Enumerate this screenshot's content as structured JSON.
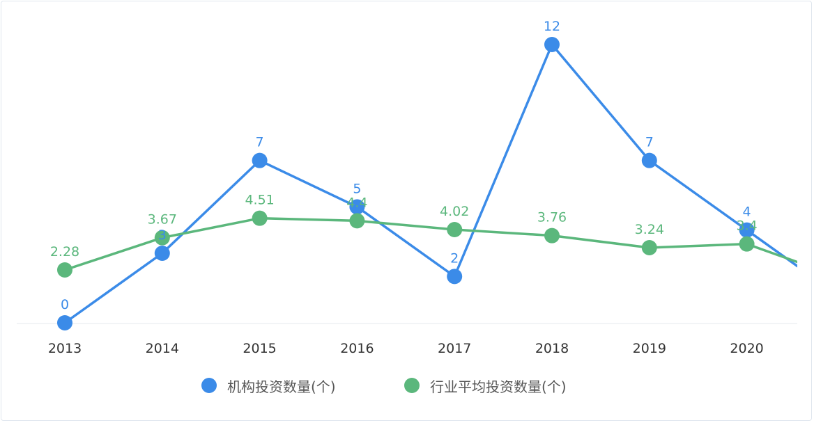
{
  "chart_data": {
    "type": "line",
    "title": "",
    "xlabel": "",
    "ylabel": "",
    "categories": [
      "2013",
      "2014",
      "2015",
      "2016",
      "2017",
      "2018",
      "2019",
      "2020"
    ],
    "ylim": [
      0,
      12
    ],
    "grid": false,
    "legend_position": "bottom-center",
    "series": [
      {
        "name": "机构投资数量(个)",
        "color": "#3b8be8",
        "values": [
          0,
          3,
          7,
          5,
          2,
          12,
          7,
          4
        ],
        "labels": [
          "0",
          "3",
          "7",
          "5",
          "2",
          "12",
          "7",
          "4"
        ],
        "clipped_next_value": 1
      },
      {
        "name": "行业平均投资数量(个)",
        "color": "#5bb77c",
        "values": [
          2.28,
          3.67,
          4.51,
          4.4,
          4.02,
          3.76,
          3.24,
          3.4
        ],
        "labels": [
          "2.28",
          "3.67",
          "4.51",
          "4.4",
          "4.02",
          "3.76",
          "3.24",
          "3.4"
        ],
        "clipped_next_value": 1.9
      }
    ]
  }
}
